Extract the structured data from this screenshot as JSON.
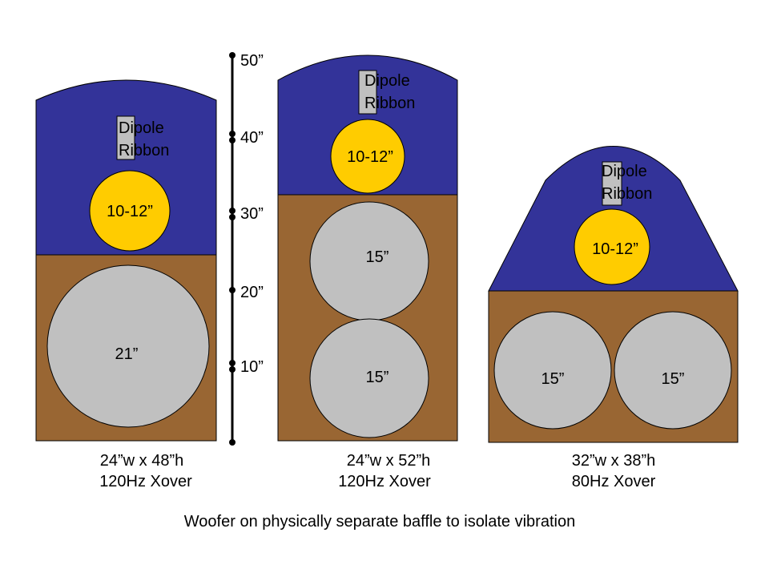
{
  "colors": {
    "upper_baffle": "#333399",
    "woofer_baffle": "#996633",
    "midrange_driver": "#ffcc00",
    "woofer_driver": "#c0c0c0",
    "ribbon": "#c0c0c0",
    "outline": "#000000",
    "text": "#000000"
  },
  "scale": {
    "ticks": [
      "50”",
      "40”",
      "30”",
      "20”",
      "10”"
    ]
  },
  "speakers": [
    {
      "ribbon_label": [
        "Dipole",
        "Ribbon"
      ],
      "midrange_label": "10-12”",
      "woofer_labels": [
        "21”"
      ],
      "caption": [
        "24”w x 48”h",
        "120Hz Xover"
      ]
    },
    {
      "ribbon_label": [
        "Dipole",
        "Ribbon"
      ],
      "midrange_label": "10-12”",
      "woofer_labels": [
        "15”",
        "15”"
      ],
      "caption": [
        "24”w x 52”h",
        "120Hz Xover"
      ]
    },
    {
      "ribbon_label": [
        "Dipole",
        "Ribbon"
      ],
      "midrange_label": "10-12”",
      "woofer_labels": [
        "15”",
        "15”"
      ],
      "caption": [
        "32”w x 38”h",
        "80Hz Xover"
      ]
    }
  ],
  "footer": "Woofer on physically separate baffle to isolate vibration"
}
